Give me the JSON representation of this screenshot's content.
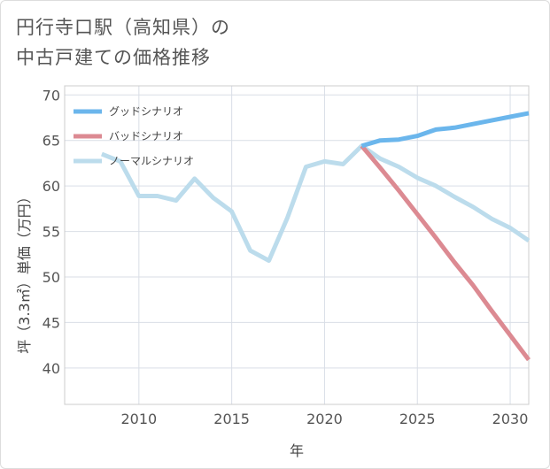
{
  "title": {
    "line1": "円行寺口駅（高知県）の",
    "line2": "中古戸建ての価格推移"
  },
  "chart_data": {
    "type": "line",
    "xlabel": "年",
    "ylabel": "坪（3.3㎡）単価（万円）",
    "xlim": [
      2006,
      2031
    ],
    "ylim": [
      36,
      71
    ],
    "x_ticks": [
      2010,
      2015,
      2020,
      2025,
      2030
    ],
    "y_ticks": [
      40,
      45,
      50,
      55,
      60,
      65,
      70
    ],
    "grid": true,
    "legend_position": "top-left",
    "series": [
      {
        "name": "グッドシナリオ",
        "color": "#6bb6ec",
        "x": [
          2022,
          2023,
          2024,
          2025,
          2026,
          2027,
          2028,
          2029,
          2030,
          2031
        ],
        "y": [
          64.4,
          65.0,
          65.1,
          65.5,
          66.2,
          66.4,
          66.8,
          67.2,
          67.6,
          68.0
        ]
      },
      {
        "name": "バッドシナリオ",
        "color": "#dc8a92",
        "x": [
          2022,
          2023,
          2024,
          2025,
          2026,
          2027,
          2028,
          2029,
          2030,
          2031
        ],
        "y": [
          64.4,
          62.0,
          59.5,
          56.9,
          54.3,
          51.6,
          49.1,
          46.3,
          43.6,
          40.9
        ]
      },
      {
        "name": "ノーマルシナリオ",
        "color": "#bcdcec",
        "x": [
          2008,
          2009,
          2010,
          2011,
          2012,
          2013,
          2014,
          2015,
          2016,
          2017,
          2018,
          2019,
          2020,
          2021,
          2022,
          2023,
          2024,
          2025,
          2026,
          2027,
          2028,
          2029,
          2030,
          2031
        ],
        "y": [
          63.5,
          62.7,
          58.9,
          58.9,
          58.4,
          60.8,
          58.7,
          57.2,
          52.9,
          51.8,
          56.5,
          62.1,
          62.7,
          62.4,
          64.4,
          63.0,
          62.1,
          60.9,
          60.0,
          58.8,
          57.7,
          56.4,
          55.4,
          54.0
        ]
      }
    ]
  }
}
